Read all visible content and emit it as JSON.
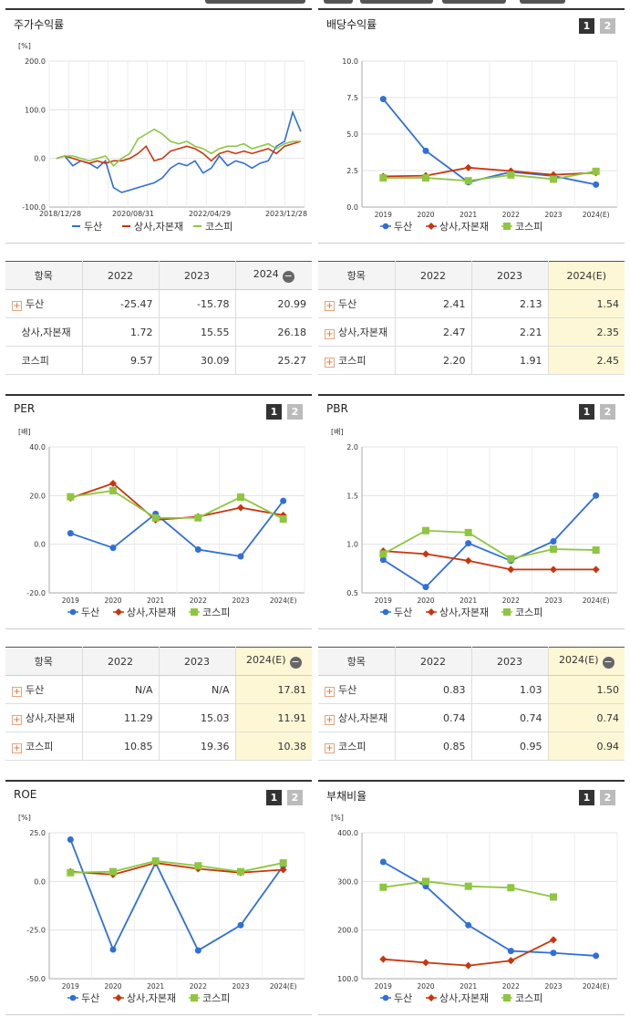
{
  "colors": {
    "doosan": "#2f6fd8",
    "sector": "#c9350d",
    "kospi": "#8ec63f"
  },
  "legend": [
    "두산",
    "상사,자본재",
    "코스피"
  ],
  "btn1": "1",
  "btn2": "2",
  "panels": {
    "stock": {
      "title": "주가수익률"
    },
    "div": {
      "title": "배당수익률"
    },
    "per": {
      "title": "PER"
    },
    "pbr": {
      "title": "PBR"
    },
    "roe": {
      "title": "ROE"
    },
    "debt": {
      "title": "부채비율"
    }
  },
  "tables": {
    "stock": {
      "head": [
        "항목",
        "2022",
        "2023",
        "2024"
      ],
      "rows": [
        [
          "두산",
          "-25.47",
          "-15.78",
          "20.99"
        ],
        [
          "상사,자본재",
          "1.72",
          "15.55",
          "26.18"
        ],
        [
          "코스피",
          "9.57",
          "30.09",
          "25.27"
        ]
      ]
    },
    "div": {
      "head": [
        "항목",
        "2022",
        "2023",
        "2024(E)"
      ],
      "rows": [
        [
          "두산",
          "2.41",
          "2.13",
          "1.54"
        ],
        [
          "상사,자본재",
          "2.47",
          "2.21",
          "2.35"
        ],
        [
          "코스피",
          "2.20",
          "1.91",
          "2.45"
        ]
      ]
    },
    "per": {
      "head": [
        "항목",
        "2022",
        "2023",
        "2024(E)"
      ],
      "rows": [
        [
          "두산",
          "N/A",
          "N/A",
          "17.81"
        ],
        [
          "상사,자본재",
          "11.29",
          "15.03",
          "11.91"
        ],
        [
          "코스피",
          "10.85",
          "19.36",
          "10.38"
        ]
      ]
    },
    "pbr": {
      "head": [
        "항목",
        "2022",
        "2023",
        "2024(E)"
      ],
      "rows": [
        [
          "두산",
          "0.83",
          "1.03",
          "1.50"
        ],
        [
          "상사,자본재",
          "0.74",
          "0.74",
          "0.74"
        ],
        [
          "코스피",
          "0.85",
          "0.95",
          "0.94"
        ]
      ]
    }
  },
  "chart_data": [
    {
      "id": "stock",
      "type": "line",
      "title": "주가수익률",
      "unit": "[%]",
      "ylim": [
        -100,
        200
      ],
      "yticks": [
        "200.0",
        "100.0",
        "0.0",
        "-100.0"
      ],
      "xticks": [
        "2018/12/28",
        "2020/08/31",
        "2022/04/29",
        "2023/12/28"
      ],
      "series": [
        {
          "name": "두산",
          "values": [
            0,
            5,
            -15,
            -5,
            -10,
            -20,
            -5,
            -60,
            -70,
            -65,
            -60,
            -55,
            -50,
            -40,
            -20,
            -10,
            -15,
            -5,
            -30,
            -20,
            5,
            -15,
            -5,
            -10,
            -20,
            -10,
            -5,
            25,
            35,
            95,
            55
          ]
        },
        {
          "name": "상사,자본재",
          "values": [
            0,
            5,
            0,
            -5,
            -10,
            -5,
            -10,
            -5,
            -5,
            0,
            10,
            25,
            -5,
            0,
            15,
            20,
            25,
            20,
            10,
            -5,
            10,
            15,
            10,
            15,
            10,
            15,
            20,
            10,
            25,
            30,
            35
          ]
        },
        {
          "name": "코스피",
          "values": [
            0,
            5,
            5,
            0,
            -5,
            0,
            5,
            -15,
            0,
            10,
            40,
            50,
            60,
            50,
            35,
            30,
            35,
            25,
            20,
            10,
            20,
            25,
            25,
            30,
            20,
            25,
            30,
            20,
            30,
            35,
            35
          ]
        }
      ]
    },
    {
      "id": "div",
      "type": "line",
      "title": "배당수익률",
      "ylim": [
        0,
        10
      ],
      "yticks": [
        "10.0",
        "7.5",
        "5.0",
        "2.5",
        "0.0"
      ],
      "categories": [
        "2019",
        "2020",
        "2021",
        "2022",
        "2023",
        "2024(E)"
      ],
      "series": [
        {
          "name": "두산",
          "values": [
            7.4,
            3.85,
            1.7,
            2.41,
            2.13,
            1.54
          ]
        },
        {
          "name": "상사,자본재",
          "values": [
            2.1,
            2.15,
            2.7,
            2.47,
            2.21,
            2.35
          ]
        },
        {
          "name": "코스피",
          "values": [
            2.0,
            2.0,
            1.8,
            2.2,
            1.91,
            2.45
          ]
        }
      ]
    },
    {
      "id": "per",
      "type": "line",
      "title": "PER",
      "unit": "[배]",
      "ylim": [
        -20,
        40
      ],
      "yticks": [
        "40.0",
        "20.0",
        "0.0",
        "-20.0"
      ],
      "categories": [
        "2019",
        "2020",
        "2021",
        "2022",
        "2023",
        "2024(E)"
      ],
      "series": [
        {
          "name": "두산",
          "values": [
            4.5,
            -1.5,
            12.5,
            -2.2,
            -5,
            17.81
          ]
        },
        {
          "name": "상사,자본재",
          "values": [
            19,
            25,
            10,
            11.29,
            15.03,
            11.91
          ]
        },
        {
          "name": "코스피",
          "values": [
            19.5,
            22,
            10.8,
            10.85,
            19.36,
            10.38
          ]
        }
      ]
    },
    {
      "id": "pbr",
      "type": "line",
      "title": "PBR",
      "unit": "[배]",
      "ylim": [
        0.5,
        2.0
      ],
      "yticks": [
        "2.0",
        "1.5",
        "1.0",
        "0.5"
      ],
      "categories": [
        "2019",
        "2020",
        "2021",
        "2022",
        "2023",
        "2024(E)"
      ],
      "series": [
        {
          "name": "두산",
          "values": [
            0.84,
            0.56,
            1.01,
            0.83,
            1.03,
            1.5
          ]
        },
        {
          "name": "상사,자본재",
          "values": [
            0.93,
            0.9,
            0.83,
            0.74,
            0.74,
            0.74
          ]
        },
        {
          "name": "코스피",
          "values": [
            0.9,
            1.14,
            1.12,
            0.85,
            0.95,
            0.94
          ]
        }
      ]
    },
    {
      "id": "roe",
      "type": "line",
      "title": "ROE",
      "unit": "[%]",
      "ylim": [
        -50,
        25
      ],
      "yticks": [
        "25.0",
        "0.0",
        "-25.0",
        "-50.0"
      ],
      "categories": [
        "2019",
        "2020",
        "2021",
        "2022",
        "2023",
        "2024(E)"
      ],
      "series": [
        {
          "name": "두산",
          "values": [
            21.5,
            -35,
            9.5,
            -35.5,
            -22.5,
            8
          ]
        },
        {
          "name": "상사,자본재",
          "values": [
            5,
            3.5,
            9.5,
            6.5,
            4.5,
            6
          ]
        },
        {
          "name": "코스피",
          "values": [
            4.5,
            5,
            10.5,
            8,
            5,
            9.5
          ]
        }
      ]
    },
    {
      "id": "debt",
      "type": "line",
      "title": "부채비율",
      "unit": "[%]",
      "ylim": [
        100,
        400
      ],
      "yticks": [
        "400.0",
        "300.0",
        "200.0",
        "100.0"
      ],
      "categories": [
        "2019",
        "2020",
        "2021",
        "2022",
        "2023",
        "2024(E)"
      ],
      "series": [
        {
          "name": "두산",
          "values": [
            340,
            290,
            210,
            157,
            153,
            147
          ]
        },
        {
          "name": "상사,자본재",
          "values": [
            140,
            133,
            127,
            137,
            180,
            null
          ]
        },
        {
          "name": "코스피",
          "values": [
            288,
            300,
            290,
            287,
            268,
            null
          ]
        }
      ]
    }
  ]
}
